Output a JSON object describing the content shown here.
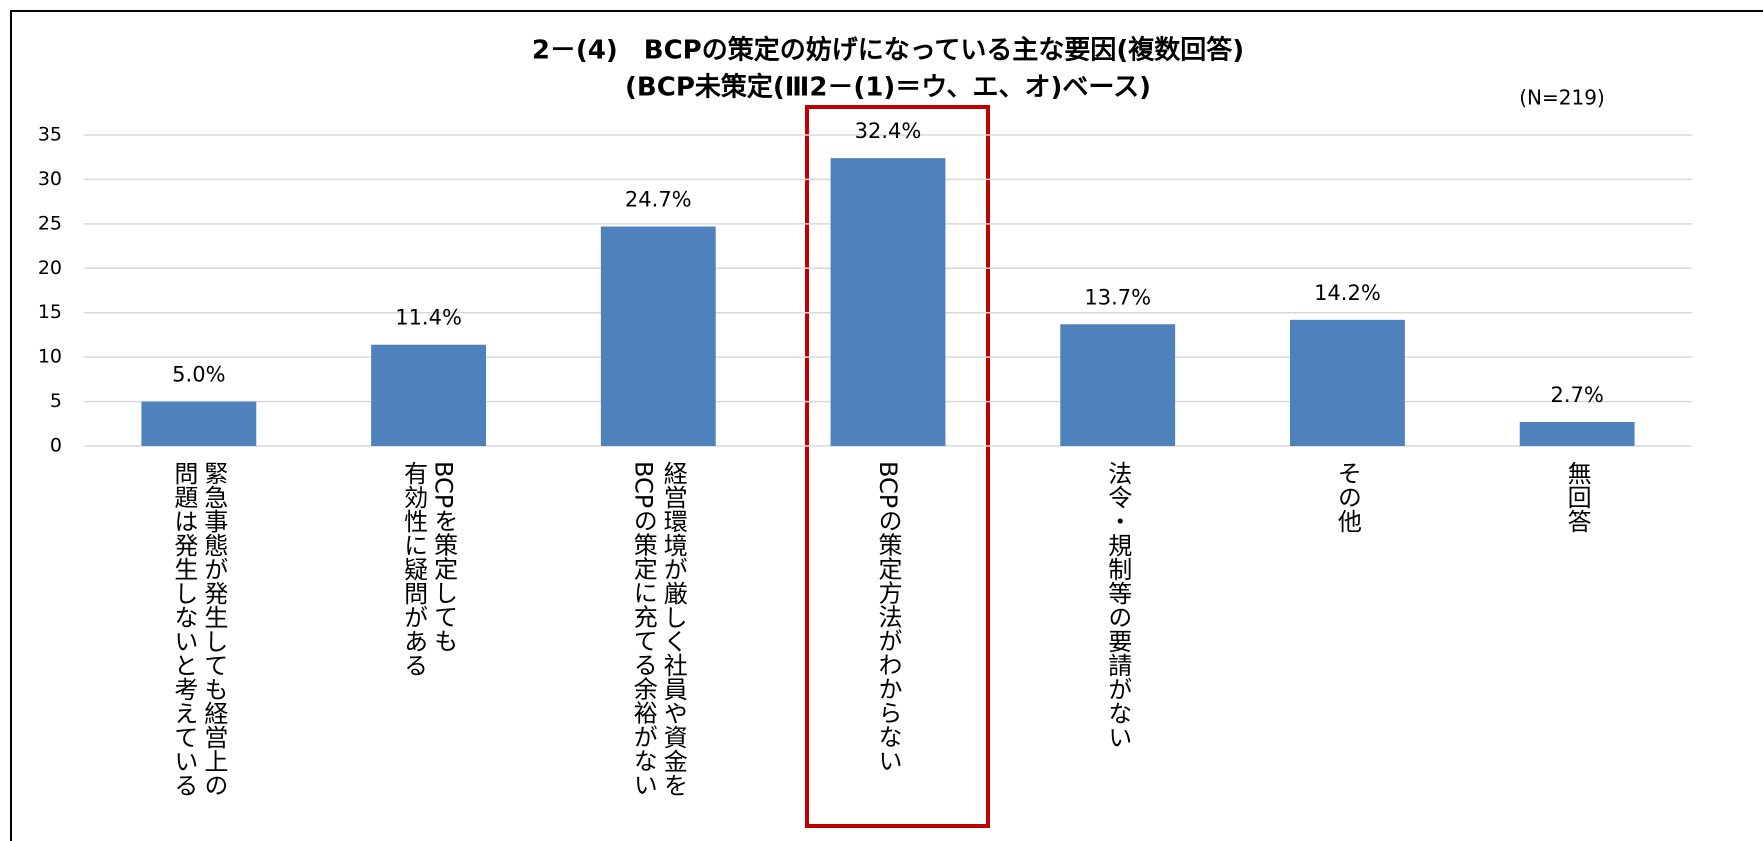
{
  "chart_data": {
    "type": "bar",
    "title": "2－(4)　BCPの策定の妨げになっている主な要因(複数回答)",
    "subtitle": "(BCP未策定(Ⅲ2－(1)＝ウ、エ、オ)ベース)",
    "annotation": "(N=219)",
    "categories": [
      "緊急事態が発生しても経営上の\n問題は発生しないと考えている",
      "BCPを策定しても\n有効性に疑問がある",
      "経営環境が厳しく社員や資金を\nBCPの策定に充てる余裕がない",
      "BCPの策定方法がわからない",
      "法令・規制等の要請がない",
      "その他",
      "無回答"
    ],
    "values": [
      5.0,
      11.4,
      24.7,
      32.4,
      13.7,
      14.2,
      2.7
    ],
    "value_labels": [
      "5.0%",
      "11.4%",
      "24.7%",
      "32.4%",
      "13.7%",
      "14.2%",
      "2.7%"
    ],
    "color": "#4f81bd",
    "ylim": [
      0,
      35
    ],
    "yticks": [
      0,
      5,
      10,
      15,
      20,
      25,
      30,
      35
    ],
    "grid": true
  }
}
